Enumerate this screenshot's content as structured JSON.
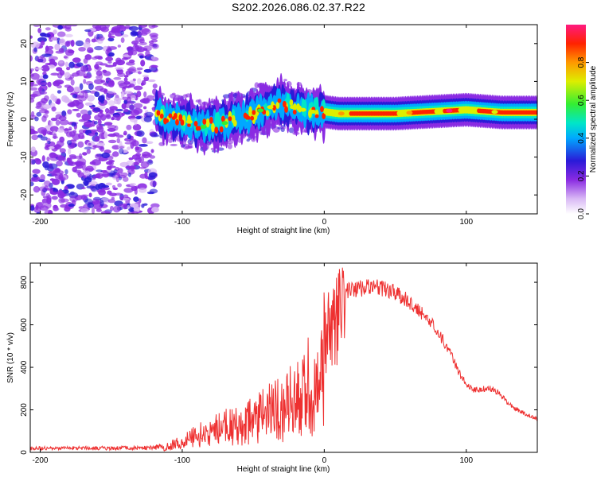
{
  "title": "S202.2026.086.02.37.R22",
  "chart_data": [
    {
      "type": "heatmap",
      "xlabel": "Height of straight line (km)",
      "ylabel": "Frequency (Hz)",
      "xlim": [
        -207,
        150
      ],
      "ylim": [
        -25,
        25
      ],
      "xticks": [
        -200,
        -100,
        0,
        100
      ],
      "xtick_labels": [
        "-200",
        "-100",
        "0",
        "100"
      ],
      "yticks": [
        -20,
        -10,
        0,
        10,
        20
      ],
      "ytick_labels": [
        "-20",
        "-10",
        "0",
        "10",
        "20"
      ],
      "colorbar": {
        "label": "Normalized spectral amplitude",
        "range": [
          0,
          1
        ],
        "ticks": [
          0.0,
          0.2,
          0.4,
          0.6,
          0.8
        ],
        "tick_labels": [
          "0.0",
          "0.2",
          "0.4",
          "0.6",
          "0.8"
        ]
      },
      "ridge": {
        "description_points_x": [
          -115,
          -100,
          -85,
          -70,
          -55,
          -40,
          -30,
          -20,
          -10,
          0,
          10,
          25,
          50,
          75,
          100,
          125,
          150
        ],
        "frequency_hz": [
          0,
          0,
          -2,
          -1,
          1,
          3,
          4,
          3,
          2,
          2,
          1.5,
          1.5,
          1.5,
          2,
          2.5,
          1.8,
          1.8
        ]
      }
    },
    {
      "type": "line",
      "xlabel": "Height of straight line (km)",
      "ylabel": "SNR (10 * v/v)",
      "xlim": [
        -207,
        150
      ],
      "ylim": [
        0,
        890
      ],
      "xticks": [
        -200,
        -100,
        0,
        100
      ],
      "xtick_labels": [
        "-200",
        "-100",
        "0",
        "100"
      ],
      "yticks": [
        0,
        200,
        400,
        600,
        800
      ],
      "ytick_labels": [
        "0",
        "200",
        "400",
        "600",
        "800"
      ],
      "color": "#ee3030",
      "envelope": {
        "x": [
          -207,
          -120,
          -110,
          -100,
          -90,
          -80,
          -70,
          -60,
          -50,
          -40,
          -30,
          -20,
          -15,
          -10,
          -5,
          0,
          5,
          10,
          15,
          20,
          30,
          40,
          50,
          60,
          70,
          80,
          90,
          95,
          100,
          105,
          110,
          115,
          120,
          125,
          130,
          140,
          150
        ],
        "y": [
          20,
          22,
          40,
          70,
          110,
          140,
          170,
          200,
          230,
          270,
          310,
          360,
          420,
          480,
          560,
          640,
          700,
          750,
          770,
          780,
          790,
          790,
          770,
          720,
          660,
          580,
          460,
          380,
          330,
          300,
          300,
          310,
          300,
          270,
          230,
          190,
          160
        ]
      }
    }
  ]
}
